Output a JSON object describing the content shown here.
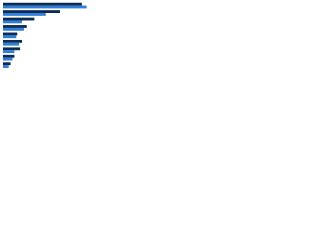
{
  "chart_data": {
    "type": "hbar",
    "categories": [
      null,
      null,
      null,
      null,
      null,
      null,
      null,
      null,
      null
    ],
    "series": [
      {
        "color": "#0d2b52",
        "values": [
          83,
          60,
          33,
          25,
          15,
          20,
          18,
          12,
          8
        ]
      },
      {
        "color": "#2f7ed8",
        "values": [
          88,
          45,
          20,
          22,
          14,
          17,
          12,
          10,
          6
        ]
      }
    ],
    "xlim": [
      0,
      100
    ]
  }
}
